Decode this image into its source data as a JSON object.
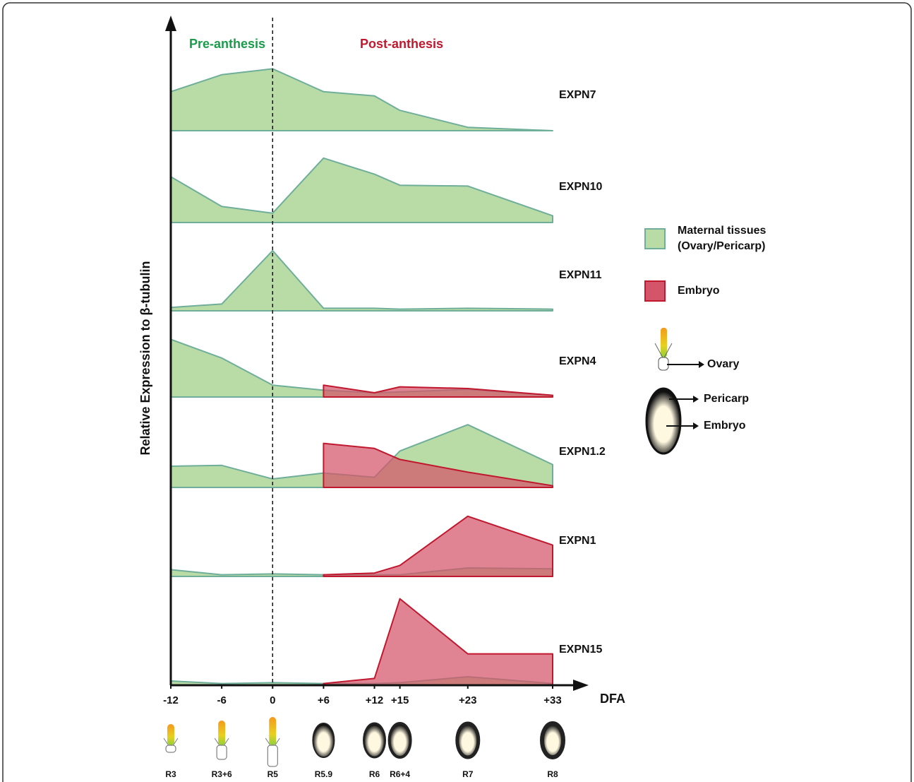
{
  "chart_data": {
    "type": "area",
    "ylabel": "Relative Expression to β-tubulin",
    "xlabel": "DFA",
    "annotations": [
      "Pre-anthesis",
      "Post-anthesis"
    ],
    "x": [
      -12,
      -6,
      0,
      6,
      12,
      15,
      23,
      33
    ],
    "xlim": [
      -12,
      33
    ],
    "xticks": [
      -12,
      -6,
      0,
      {
        "value": 6,
        "label": "+6"
      },
      {
        "value": 12,
        "label": "+12"
      },
      {
        "value": 15,
        "label": "+15"
      },
      {
        "value": 23,
        "label": "+23"
      },
      {
        "value": 33,
        "label": "+33"
      }
    ],
    "ylim": [
      0,
      110
    ],
    "stages": [
      "R3",
      "R3+6",
      "R5",
      "R5.9",
      "R6",
      "R6+4",
      "R7",
      "R8"
    ],
    "legend": [
      {
        "name": [
          "Maternal tissues",
          "(Ovary/Pericarp)"
        ],
        "color": "#b9dca6"
      },
      {
        "name": [
          "Embryo"
        ],
        "color": "#d4556a"
      }
    ],
    "tissue_labels": [
      "Ovary",
      "Pericarp",
      "Embryo"
    ],
    "panels": [
      {
        "label": "EXPN7",
        "series": [
          {
            "values": [
              46,
              66,
              73,
              46,
              41,
              24,
              4,
              0
            ]
          },
          {
            "values": [
              null,
              null,
              null,
              null,
              null,
              null,
              null,
              null
            ]
          }
        ]
      },
      {
        "label": "EXPN10",
        "series": [
          {
            "values": [
              54,
              19,
              11,
              76,
              57,
              44,
              43,
              8
            ]
          },
          {
            "values": [
              null,
              null,
              null,
              null,
              null,
              null,
              null,
              null
            ]
          }
        ]
      },
      {
        "label": "EXPN11",
        "series": [
          {
            "values": [
              4,
              8,
              71,
              3,
              3,
              2,
              3,
              2
            ]
          },
          {
            "values": [
              null,
              null,
              null,
              null,
              null,
              null,
              null,
              null
            ]
          }
        ]
      },
      {
        "label": "EXPN4",
        "series": [
          {
            "values": [
              68,
              46,
              14,
              8,
              5,
              6,
              9,
              2
            ]
          },
          {
            "values": [
              null,
              null,
              null,
              14,
              5,
              12,
              10,
              2
            ]
          }
        ]
      },
      {
        "label": "EXPN1.2",
        "series": [
          {
            "values": [
              25,
              26,
              10,
              17,
              12,
              43,
              74,
              27
            ]
          },
          {
            "values": [
              null,
              null,
              null,
              52,
              46,
              33,
              18,
              2
            ]
          }
        ]
      },
      {
        "label": "EXPN1",
        "series": [
          {
            "values": [
              8,
              2,
              3,
              2,
              2,
              2,
              10,
              9
            ]
          },
          {
            "values": [
              null,
              null,
              null,
              2,
              4,
              13,
              71,
              37
            ]
          }
        ]
      },
      {
        "label": "EXPN15",
        "series": [
          {
            "values": [
              5,
              2,
              3,
              2,
              2,
              3,
              10,
              2
            ]
          },
          {
            "values": [
              null,
              null,
              null,
              2,
              8,
              102,
              37,
              37
            ]
          }
        ]
      }
    ]
  }
}
